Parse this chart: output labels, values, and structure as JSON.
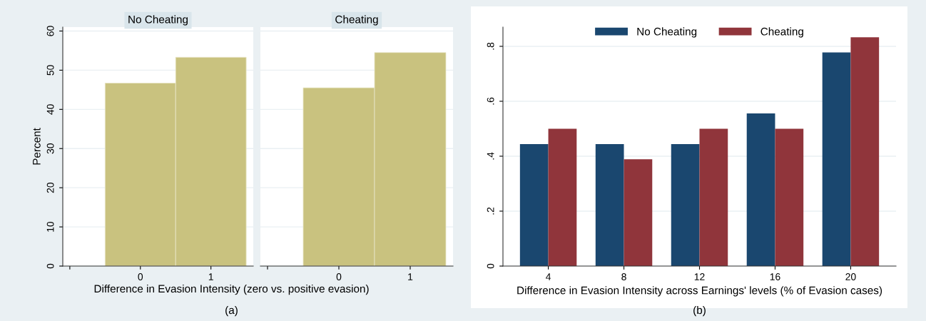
{
  "chart_data": [
    {
      "type": "histogram",
      "title": "No Cheating",
      "ylabel": "Percent",
      "xlabel": "Difference in Evasion Intensity (zero vs. positive evasion)",
      "annotations": [
        "(a)"
      ],
      "bins": [
        -0.5,
        0.5,
        1.5
      ],
      "values": [
        46.7,
        53.3
      ],
      "color": "#c9c27f",
      "xlim": [
        -1.1,
        1.6
      ],
      "xticks": [
        {
          "value": -1,
          "label": null
        },
        0,
        1
      ],
      "ylim": [
        0,
        61
      ],
      "yticks": [
        0,
        10,
        20,
        30,
        40,
        50,
        60
      ],
      "grid": "y"
    },
    {
      "type": "histogram",
      "title": "Cheating",
      "bins": [
        -0.5,
        0.5,
        1.5
      ],
      "values": [
        45.5,
        54.5
      ],
      "color": "#c9c27f",
      "xlim": [
        -1.1,
        1.6
      ],
      "xticks": [
        {
          "value": -1,
          "label": null
        },
        0,
        1
      ],
      "ylim": [
        0,
        61
      ],
      "yticks": [
        0,
        10,
        20,
        30,
        40,
        50,
        60
      ],
      "grid": "y",
      "tick_labels": "x"
    },
    {
      "type": "bar",
      "xlabel": "Difference in Evasion Intensity across Earnings' levels (% of Evasion cases)",
      "annotations": [
        "(b)"
      ],
      "categories": [
        "4",
        "8",
        "12",
        "16",
        "20"
      ],
      "series": [
        {
          "name": "No Cheating",
          "color": "#1a476f",
          "values": [
            0.444,
            0.444,
            0.444,
            0.556,
            0.778
          ]
        },
        {
          "name": "Cheating",
          "color": "#90353b",
          "values": [
            0.5,
            0.389,
            0.5,
            0.5,
            0.833
          ]
        }
      ],
      "ylim": [
        0,
        0.87
      ],
      "yticks": [
        0,
        {
          "value": 0.2,
          "label": ".2"
        },
        {
          "value": 0.4,
          "label": ".4"
        },
        {
          "value": 0.6,
          "label": ".6"
        },
        {
          "value": 0.8,
          "label": ".8"
        }
      ],
      "grid": "y",
      "legend": "top"
    }
  ]
}
